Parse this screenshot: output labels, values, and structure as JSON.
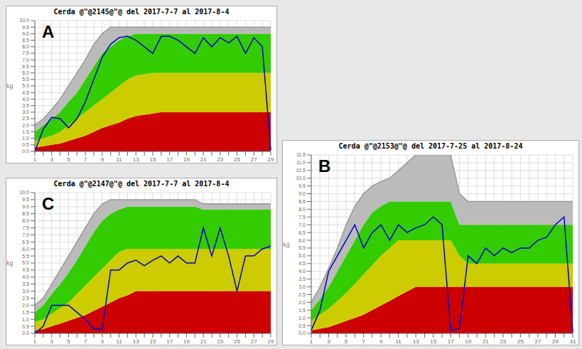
{
  "chart_data": [
    {
      "type": "area",
      "title": "Cerda @\"@2145@\"@ del 2017-7-7 al 2017-8-4",
      "annotations": [
        "A"
      ],
      "ylabel": "kg",
      "categories": [
        "1",
        null,
        "3",
        null,
        "5",
        null,
        "7",
        null,
        "9",
        null,
        "11",
        null,
        "13",
        null,
        "15",
        null,
        "17",
        null,
        "19",
        null,
        "21",
        null,
        "23",
        null,
        "25",
        null,
        "27",
        null,
        "29"
      ],
      "ylim": [
        0,
        10.0
      ],
      "yticks": [
        {
          "value": 0,
          "label": "0.0"
        },
        0.5,
        {
          "value": 1,
          "label": "1.0"
        },
        1.5,
        {
          "value": 2,
          "label": "2.0"
        },
        2.5,
        {
          "value": 3,
          "label": "3.0"
        },
        3.5,
        {
          "value": 4,
          "label": "4.0"
        },
        4.5,
        {
          "value": 5,
          "label": "5.0"
        },
        5.5,
        {
          "value": 6,
          "label": "6.0"
        },
        6.5,
        {
          "value": 7,
          "label": "7.0"
        },
        7.5,
        {
          "value": 8,
          "label": "8.0"
        },
        8.5,
        {
          "value": 9,
          "label": "9.0"
        },
        9.5,
        {
          "value": 10,
          "label": "10.0"
        }
      ],
      "grid": true,
      "series": [
        {
          "type": "area",
          "color": "#cc0000",
          "values": [
            0.3,
            0.4,
            0.5,
            0.6,
            0.8,
            1.0,
            1.2,
            1.5,
            1.8,
            2.0,
            2.2,
            2.5,
            2.7,
            2.8,
            2.9,
            3.0,
            3.0,
            3.0,
            3.0,
            3.0,
            3.0,
            3.0,
            3.0,
            3.0,
            3.0,
            3.0,
            3.0,
            3.0,
            3.0
          ]
        },
        {
          "type": "area",
          "color": "#cccc00",
          "values": [
            0.8,
            1.0,
            1.2,
            1.5,
            2.0,
            2.5,
            3.0,
            3.5,
            4.0,
            4.5,
            5.0,
            5.5,
            5.8,
            5.9,
            6.0,
            6.0,
            6.0,
            6.0,
            6.0,
            6.0,
            6.0,
            6.0,
            6.0,
            6.0,
            6.0,
            6.0,
            6.0,
            6.0,
            6.0
          ]
        },
        {
          "type": "area",
          "color": "#33cc00",
          "values": [
            1.5,
            2.0,
            2.5,
            3.0,
            3.8,
            4.5,
            5.5,
            6.5,
            7.5,
            8.0,
            8.5,
            8.8,
            9.0,
            9.0,
            9.0,
            9.0,
            9.0,
            9.0,
            9.0,
            9.0,
            9.0,
            9.0,
            9.0,
            9.0,
            9.0,
            9.0,
            9.0,
            9.0,
            9.0
          ]
        },
        {
          "type": "area",
          "color": "#bbbbbb",
          "values": [
            2.0,
            2.5,
            3.2,
            4.0,
            5.0,
            6.0,
            7.0,
            8.2,
            9.0,
            9.5,
            9.5,
            9.5,
            9.5,
            9.5,
            9.5,
            9.5,
            9.5,
            9.5,
            9.5,
            9.5,
            9.5,
            9.5,
            9.5,
            9.5,
            9.5,
            9.5,
            9.5,
            9.5,
            9.5
          ]
        },
        {
          "type": "line",
          "color": "#999999",
          "values": [
            2.0,
            2.5,
            3.2,
            4.0,
            5.0,
            6.0,
            7.0,
            8.2,
            9.0,
            9.5,
            9.5,
            9.5,
            9.5,
            9.5,
            9.5,
            9.5,
            9.5,
            9.5,
            9.5,
            9.5,
            9.5,
            9.5,
            9.5,
            9.5,
            9.5,
            9.5,
            9.5,
            9.5,
            9.5
          ]
        },
        {
          "type": "line",
          "color": "#0000cc",
          "values": [
            0.0,
            1.7,
            2.6,
            2.5,
            1.8,
            2.5,
            3.8,
            5.5,
            7.2,
            8.2,
            8.7,
            8.8,
            8.5,
            8.0,
            7.5,
            8.8,
            8.8,
            8.5,
            8.0,
            7.5,
            8.7,
            8.0,
            8.7,
            8.3,
            8.8,
            7.5,
            8.7,
            8.0,
            0.1
          ]
        }
      ]
    },
    {
      "type": "area",
      "title": "Cerda @\"@2153@\"@ del 2017-7-25 al 2017-8-24",
      "annotations": [
        "B"
      ],
      "ylabel": "kg",
      "categories": [
        "1",
        null,
        "3",
        null,
        "5",
        null,
        "7",
        null,
        "9",
        null,
        "11",
        null,
        "13",
        null,
        "15",
        null,
        "17",
        null,
        "19",
        null,
        "21",
        null,
        "23",
        null,
        "25",
        null,
        "27",
        null,
        "29",
        null,
        "31"
      ],
      "ylim": [
        0,
        11.5
      ],
      "yticks": [
        {
          "value": 0,
          "label": "0.0"
        },
        0.5,
        {
          "value": 1,
          "label": "1.0"
        },
        1.5,
        {
          "value": 2,
          "label": "2.0"
        },
        2.5,
        {
          "value": 3,
          "label": "3.0"
        },
        3.5,
        {
          "value": 4,
          "label": "4.0"
        },
        4.5,
        {
          "value": 5,
          "label": "5.0"
        },
        5.5,
        {
          "value": 6,
          "label": "6.0"
        },
        6.5,
        {
          "value": 7,
          "label": "7.0"
        },
        7.5,
        {
          "value": 8,
          "label": "8.0"
        },
        8.5,
        {
          "value": 9,
          "label": "9.0"
        },
        9.5,
        {
          "value": 10,
          "label": "10.0"
        },
        10.5,
        {
          "value": 11,
          "label": "11.0"
        },
        11.5
      ],
      "grid": true,
      "series": [
        {
          "type": "area",
          "color": "#cc0000",
          "values": [
            0.2,
            0.3,
            0.4,
            0.6,
            0.8,
            1.0,
            1.2,
            1.5,
            1.8,
            2.1,
            2.4,
            2.7,
            3.0,
            3.0,
            3.0,
            3.0,
            3.0,
            3.0,
            3.0,
            3.0,
            3.0,
            3.0,
            3.0,
            3.0,
            3.0,
            3.0,
            3.0,
            3.0,
            3.0,
            3.0,
            3.0
          ]
        },
        {
          "type": "area",
          "color": "#cccc00",
          "values": [
            0.8,
            1.2,
            1.6,
            2.1,
            2.6,
            3.2,
            3.8,
            4.4,
            5.0,
            5.5,
            6.0,
            6.0,
            6.0,
            6.0,
            6.0,
            6.0,
            6.0,
            5.0,
            4.5,
            4.5,
            4.5,
            4.5,
            4.5,
            4.5,
            4.5,
            4.5,
            4.5,
            4.5,
            4.5,
            4.5,
            4.5
          ]
        },
        {
          "type": "area",
          "color": "#33cc00",
          "values": [
            1.5,
            2.2,
            3.0,
            4.0,
            5.0,
            6.0,
            7.0,
            7.8,
            8.2,
            8.5,
            8.5,
            8.5,
            8.5,
            8.5,
            8.5,
            8.5,
            8.5,
            7.0,
            7.0,
            7.0,
            7.0,
            7.0,
            7.0,
            7.0,
            7.0,
            7.0,
            7.0,
            7.0,
            7.0,
            7.0,
            7.0
          ]
        },
        {
          "type": "area",
          "color": "#bbbbbb",
          "values": [
            2.0,
            3.0,
            4.2,
            5.5,
            7.0,
            8.2,
            9.0,
            9.5,
            9.8,
            10.0,
            10.5,
            11.0,
            11.5,
            11.5,
            11.5,
            11.5,
            11.5,
            9.0,
            8.5,
            8.5,
            8.5,
            8.5,
            8.5,
            8.5,
            8.5,
            8.5,
            8.5,
            8.5,
            8.5,
            8.5,
            8.5
          ]
        },
        {
          "type": "line",
          "color": "#999999",
          "values": [
            2.0,
            3.0,
            4.2,
            5.5,
            7.0,
            8.2,
            9.0,
            9.5,
            9.8,
            10.0,
            10.5,
            11.0,
            11.5,
            11.5,
            11.5,
            11.5,
            11.5,
            9.0,
            8.5,
            8.5,
            8.5,
            8.5,
            8.5,
            8.5,
            8.5,
            8.5,
            8.5,
            8.5,
            8.5,
            8.5,
            8.5
          ]
        },
        {
          "type": "line",
          "color": "#0000cc",
          "values": [
            0.2,
            1.5,
            4.0,
            5.0,
            6.0,
            7.0,
            5.5,
            6.5,
            7.0,
            6.0,
            7.0,
            6.5,
            6.8,
            7.0,
            7.5,
            7.0,
            0.2,
            0.3,
            5.0,
            4.5,
            5.5,
            5.0,
            5.5,
            5.2,
            5.5,
            5.5,
            6.0,
            6.2,
            7.0,
            7.5,
            0.1
          ]
        }
      ]
    },
    {
      "type": "area",
      "title": "Cerda @\"@2147@\"@ del 2017-7-7 al 2017-8-4",
      "annotations": [
        "C"
      ],
      "ylabel": "kg",
      "categories": [
        "1",
        null,
        "3",
        null,
        "5",
        null,
        "7",
        null,
        "9",
        null,
        "11",
        null,
        "13",
        null,
        "15",
        null,
        "17",
        null,
        "19",
        null,
        "21",
        null,
        "23",
        null,
        "25",
        null,
        "27",
        null,
        "29"
      ],
      "ylim": [
        0,
        10.0
      ],
      "yticks": [
        {
          "value": 0,
          "label": "0.0"
        },
        0.5,
        {
          "value": 1,
          "label": "1.0"
        },
        1.5,
        {
          "value": 2,
          "label": "2.0"
        },
        2.5,
        {
          "value": 3,
          "label": "3.0"
        },
        3.5,
        {
          "value": 4,
          "label": "4.0"
        },
        4.5,
        {
          "value": 5,
          "label": "5.0"
        },
        5.5,
        {
          "value": 6,
          "label": "6.0"
        },
        6.5,
        {
          "value": 7,
          "label": "7.0"
        },
        7.5,
        {
          "value": 8,
          "label": "8.0"
        },
        8.5,
        {
          "value": 9,
          "label": "9.0"
        },
        9.5,
        {
          "value": 10,
          "label": "10.0"
        }
      ],
      "grid": true,
      "series": [
        {
          "type": "area",
          "color": "#cc0000",
          "values": [
            0.2,
            0.3,
            0.5,
            0.7,
            0.9,
            1.1,
            1.3,
            1.6,
            1.9,
            2.2,
            2.5,
            2.7,
            3.0,
            3.0,
            3.0,
            3.0,
            3.0,
            3.0,
            3.0,
            3.0,
            3.0,
            3.0,
            3.0,
            3.0,
            3.0,
            3.0,
            3.0,
            3.0,
            3.0
          ]
        },
        {
          "type": "area",
          "color": "#cccc00",
          "values": [
            0.8,
            1.0,
            1.4,
            1.8,
            2.2,
            2.8,
            3.4,
            4.0,
            4.6,
            5.2,
            5.8,
            6.0,
            6.0,
            6.0,
            6.0,
            6.0,
            6.0,
            6.0,
            6.0,
            6.0,
            6.0,
            6.0,
            6.0,
            6.0,
            6.0,
            6.0,
            6.0,
            6.0,
            6.0
          ]
        },
        {
          "type": "area",
          "color": "#33cc00",
          "values": [
            1.5,
            2.0,
            2.8,
            3.5,
            4.3,
            5.2,
            6.2,
            7.2,
            8.0,
            8.5,
            8.8,
            9.0,
            9.0,
            9.0,
            9.0,
            9.0,
            9.0,
            9.0,
            9.0,
            9.0,
            8.8,
            8.8,
            8.8,
            8.8,
            8.8,
            8.8,
            8.8,
            8.8,
            8.8
          ]
        },
        {
          "type": "area",
          "color": "#bbbbbb",
          "values": [
            2.0,
            2.5,
            3.5,
            4.5,
            5.5,
            6.5,
            7.5,
            8.5,
            9.2,
            9.5,
            9.5,
            9.5,
            9.5,
            9.5,
            9.5,
            9.5,
            9.5,
            9.5,
            9.5,
            9.5,
            9.2,
            9.2,
            9.2,
            9.2,
            9.2,
            9.2,
            9.2,
            9.2,
            9.2
          ]
        },
        {
          "type": "line",
          "color": "#999999",
          "values": [
            2.0,
            2.5,
            3.5,
            4.5,
            5.5,
            6.5,
            7.5,
            8.5,
            9.2,
            9.5,
            9.5,
            9.5,
            9.5,
            9.5,
            9.5,
            9.5,
            9.5,
            9.5,
            9.5,
            9.5,
            9.2,
            9.2,
            9.2,
            9.2,
            9.2,
            9.2,
            9.2,
            9.2,
            9.2
          ]
        },
        {
          "type": "line",
          "color": "#0000cc",
          "values": [
            0.0,
            0.5,
            2.0,
            2.0,
            2.0,
            1.5,
            1.0,
            0.3,
            0.3,
            4.5,
            4.5,
            5.0,
            5.2,
            4.8,
            5.2,
            5.5,
            5.0,
            5.5,
            5.0,
            5.0,
            7.5,
            5.5,
            7.5,
            5.5,
            3.0,
            5.5,
            5.5,
            6.0,
            6.2
          ]
        }
      ]
    }
  ]
}
